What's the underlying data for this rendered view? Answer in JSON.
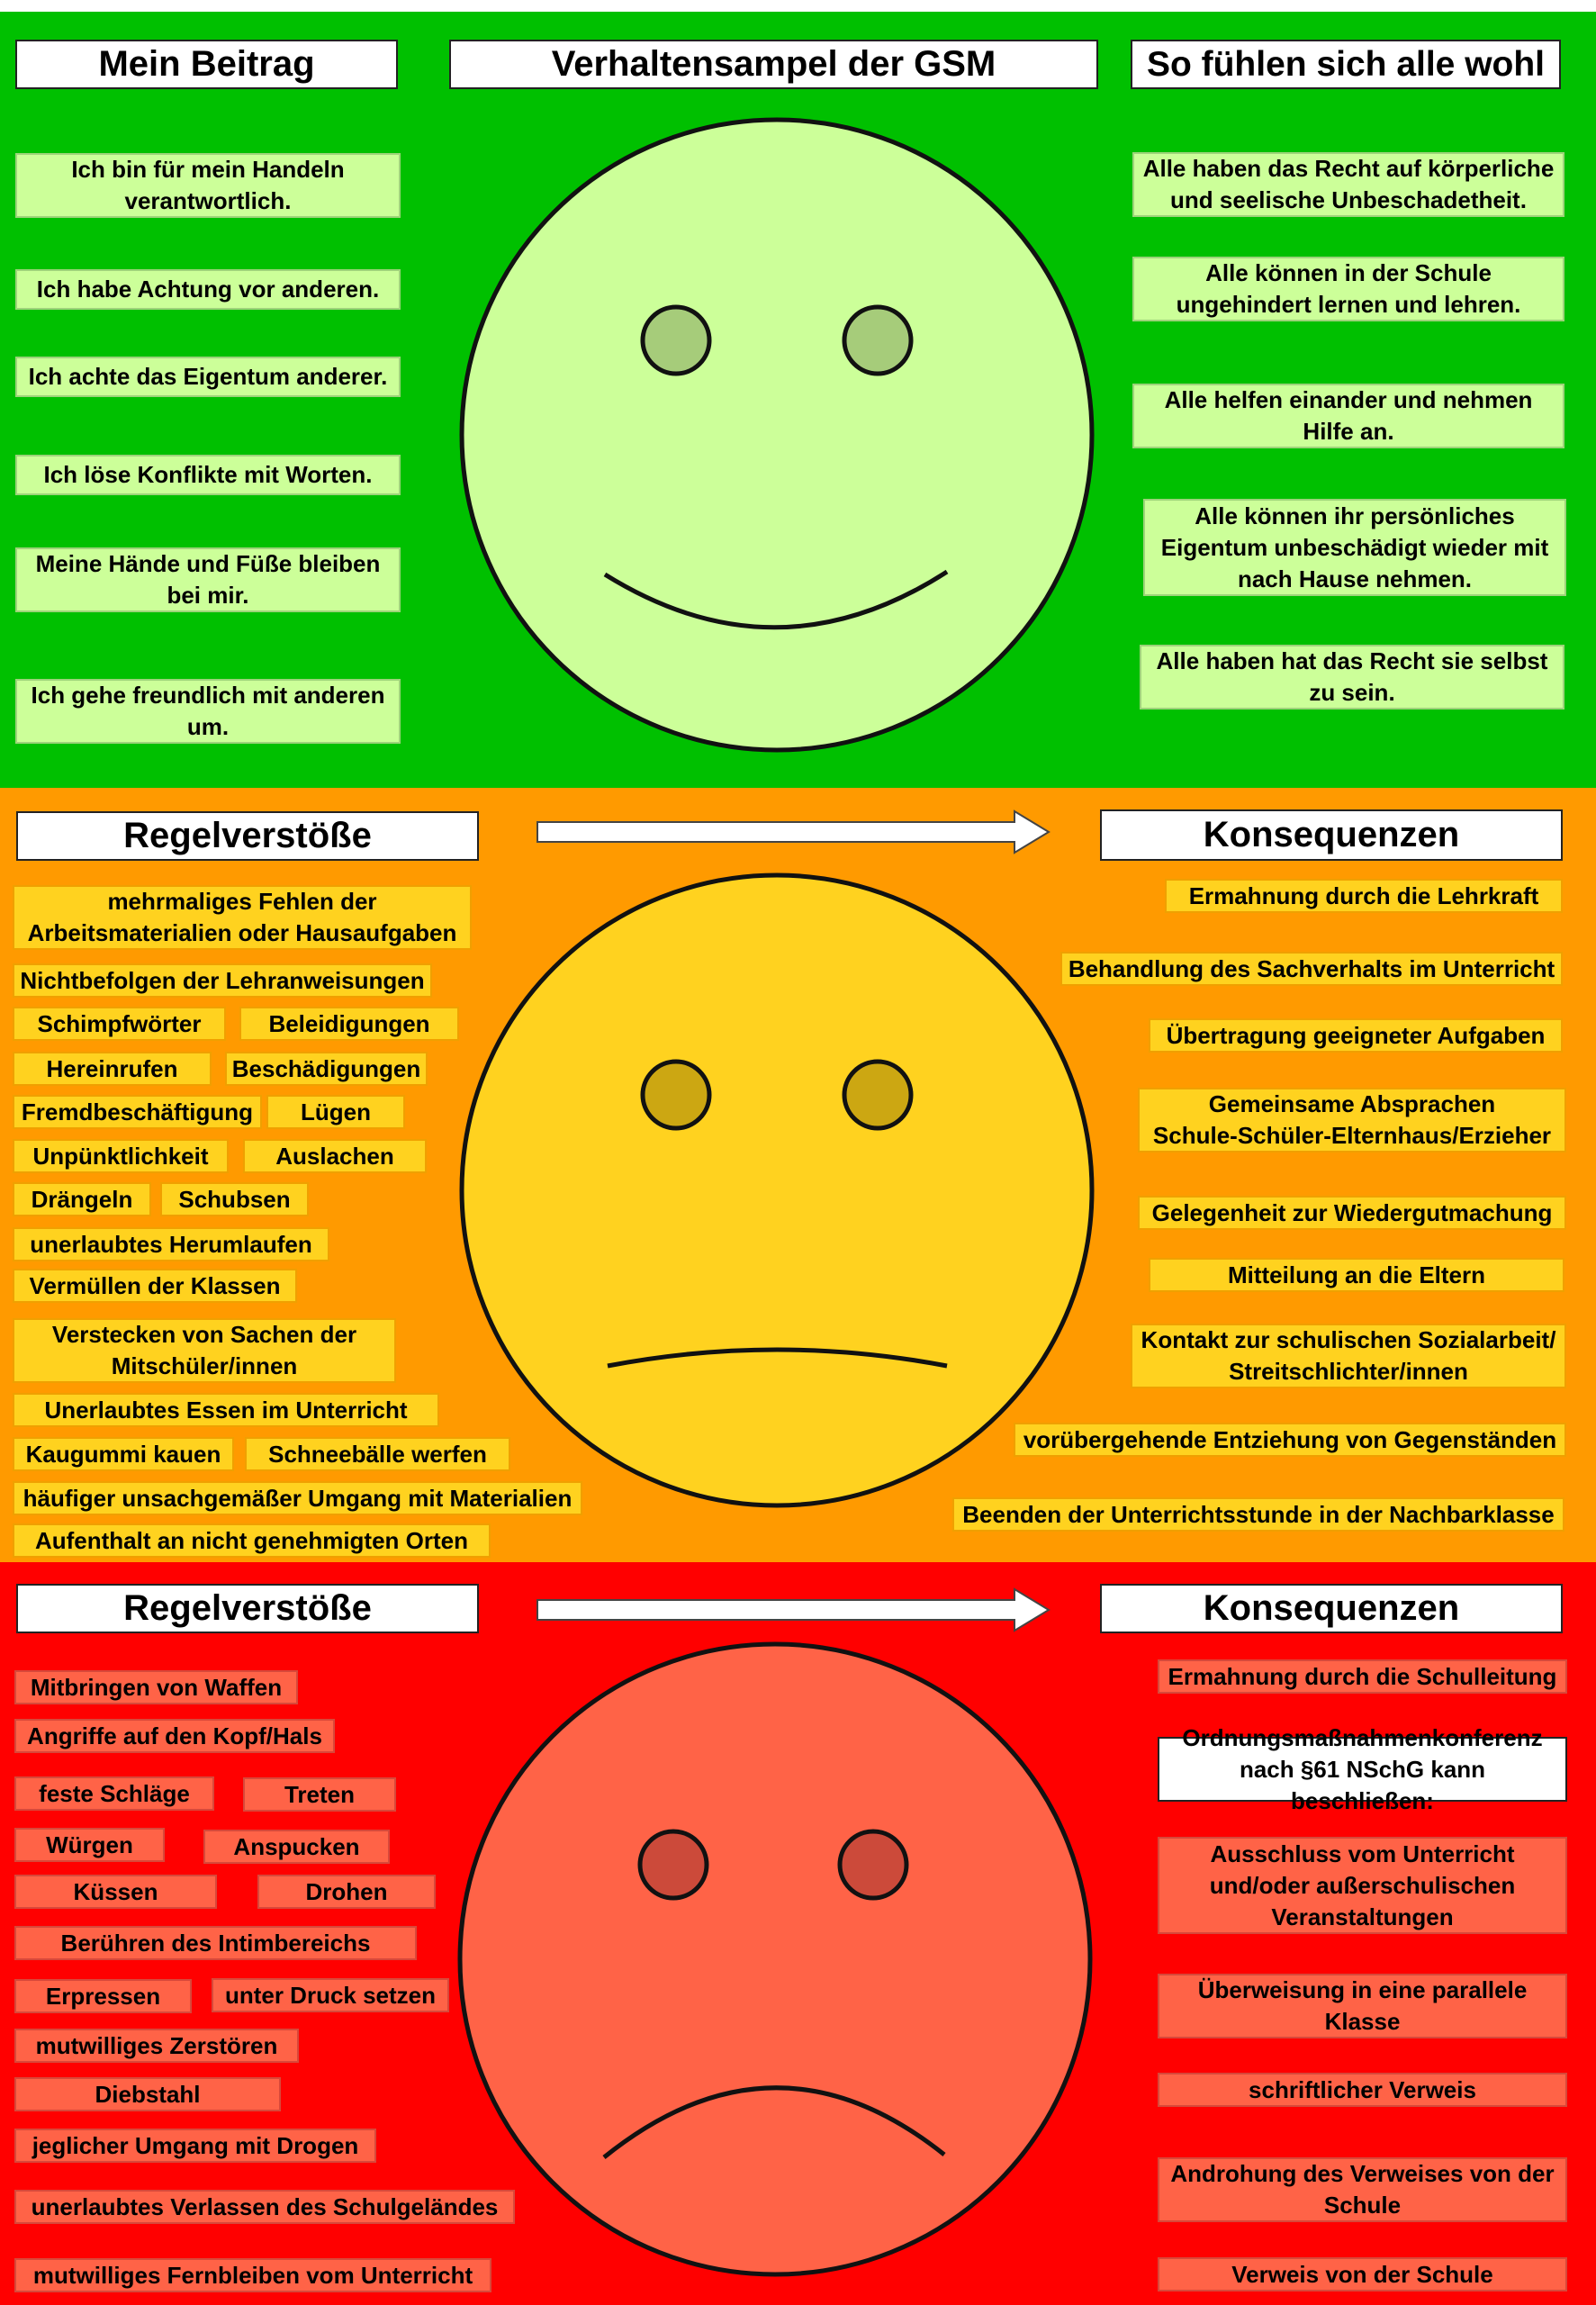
{
  "colors": {
    "green_band": "#00c000",
    "orange_band": "#ff9a00",
    "red_band": "#ff0000",
    "green_face": "#ccff99",
    "yellow_face": "#ffd21f",
    "red_face": "#ff6347"
  },
  "green": {
    "headers": {
      "left": "Mein Beitrag",
      "center": "Verhaltensampel der GSM",
      "right": "So fühlen sich alle wohl"
    },
    "left_items": [
      "Ich bin für mein Handeln\nverantwortlich.",
      "Ich habe Achtung vor anderen.",
      "Ich achte das Eigentum anderer.",
      "Ich löse Konflikte mit Worten.",
      "Meine Hände und Füße bleiben\nbei mir.",
      "Ich gehe freundlich mit anderen\num."
    ],
    "right_items": [
      "Alle haben das Recht auf körperliche\nund seelische Unbeschadetheit.",
      "Alle können in der Schule\nungehindert lernen und lehren.",
      "Alle helfen einander und nehmen\nHilfe an.",
      "Alle können ihr persönliches\nEigentum unbeschädigt wieder mit\nnach Hause nehmen.",
      "Alle haben hat das Recht sie selbst\nzu sein."
    ],
    "face": "smiling-face-icon"
  },
  "orange": {
    "headers": {
      "left": "Regelverstöße",
      "right": "Konsequenzen"
    },
    "violations": [
      "mehrmaliges Fehlen der\nArbeitsmaterialien oder Hausaufgaben",
      "Nichtbefolgen der Lehranweisungen",
      "Schimpfwörter",
      "Beleidigungen",
      "Hereinrufen",
      "Beschädigungen",
      "Fremdbeschäftigung",
      "Lügen",
      "Unpünktlichkeit",
      "Auslachen",
      "Drängeln",
      "Schubsen",
      "unerlaubtes Herumlaufen",
      "Vermüllen der Klassen",
      "Verstecken von Sachen der\nMitschüler/innen",
      "Unerlaubtes Essen im Unterricht",
      "Kaugummi kauen",
      "Schneebälle werfen",
      "häufiger unsachgemäßer Umgang mit Materialien",
      "Aufenthalt an nicht genehmigten Orten"
    ],
    "consequences": [
      "Ermahnung durch die Lehrkraft",
      "Behandlung des Sachverhalts im Unterricht",
      "Übertragung geeigneter Aufgaben",
      "Gemeinsame Absprachen\nSchule-Schüler-Elternhaus/Erzieher",
      "Gelegenheit zur Wiedergutmachung",
      "Mitteilung an die Eltern",
      "Kontakt zur schulischen Sozialarbeit/\nStreitschlichter/innen",
      "vorübergehende Entziehung von Gegenständen",
      "Beenden der Unterrichtsstunde in der Nachbarklasse"
    ],
    "face": "neutral-face-icon",
    "arrow": "right-arrow-icon"
  },
  "red": {
    "headers": {
      "left": "Regelverstöße",
      "right": "Konsequenzen"
    },
    "violations": [
      "Mitbringen von Waffen",
      "Angriffe auf den Kopf/Hals",
      "feste Schläge",
      "Treten",
      "Würgen",
      "Anspucken",
      "Küssen",
      "Drohen",
      "Berühren des Intimbereichs",
      "Erpressen",
      "unter Druck setzen",
      "mutwilliges Zerstören",
      "Diebstahl",
      "jeglicher Umgang mit Drogen",
      "unerlaubtes Verlassen des Schulgeländes",
      "mutwilliges Fernbleiben vom Unterricht"
    ],
    "consequences": [
      "Ermahnung durch die Schulleitung",
      "Ordnungsmaßnahmenkonferenz\nnach §61 NSchG kann beschließen:",
      "Ausschluss vom Unterricht\nund/oder  außerschulischen\nVeranstaltungen",
      "Überweisung in eine parallele\nKlasse",
      "schriftlicher Verweis",
      "Androhung des Verweises von der\nSchule",
      "Verweis von der Schule"
    ],
    "face": "sad-face-icon",
    "arrow": "right-arrow-icon"
  }
}
